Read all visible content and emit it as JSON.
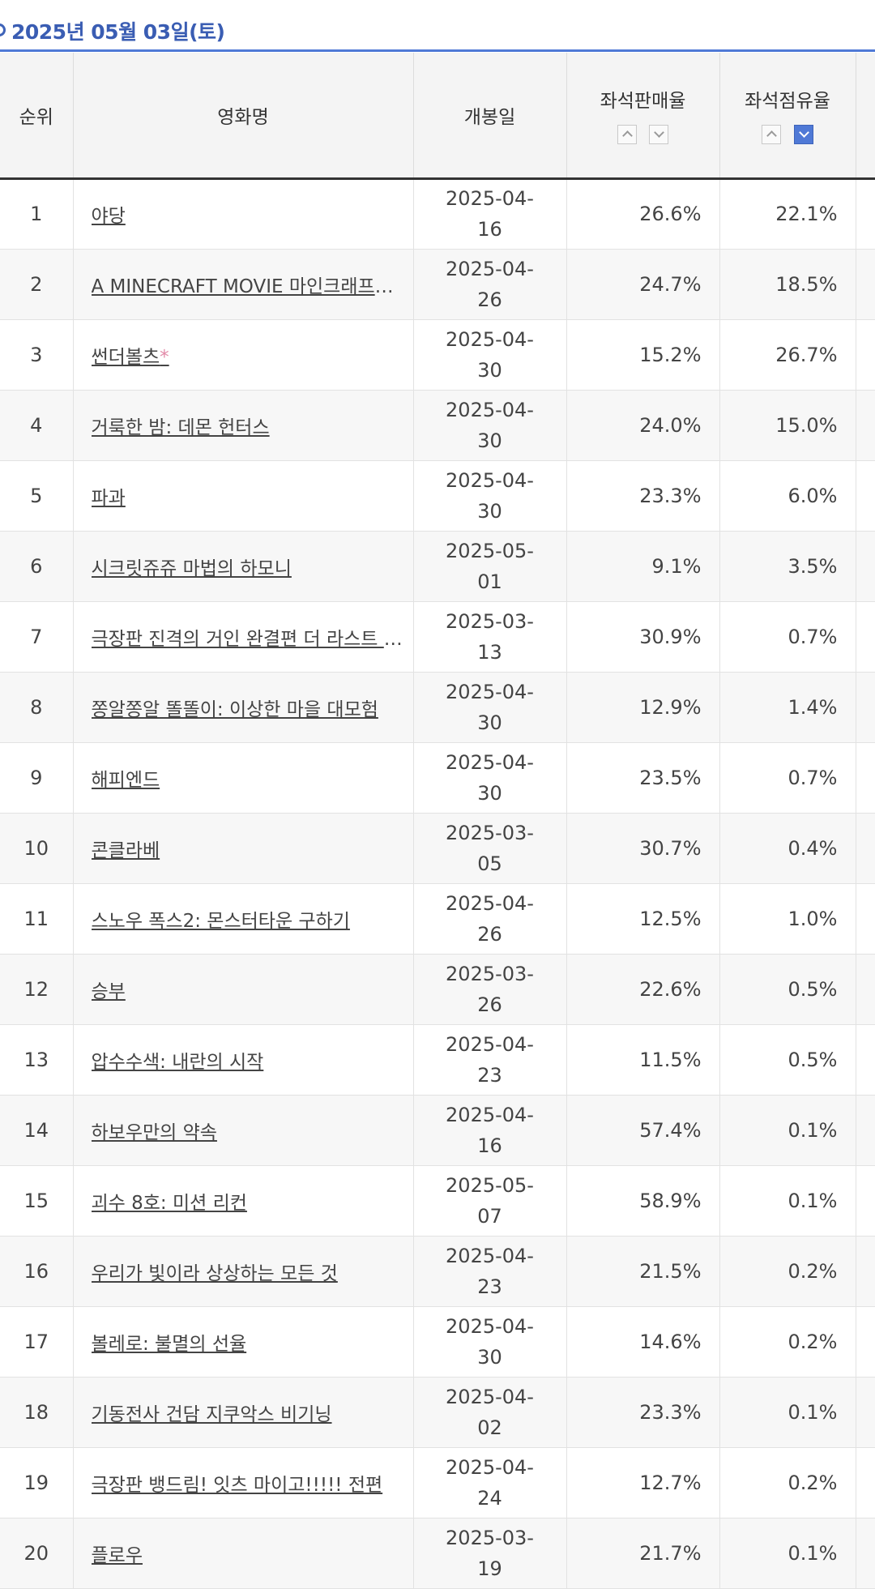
{
  "header": {
    "date": "2025년 05월 03일(토)"
  },
  "table": {
    "columns": {
      "rank": "순위",
      "title": "영화명",
      "open_date": "개봉일",
      "seat_sales": "좌석판매율",
      "seat_share": "좌석점유율"
    },
    "rows": [
      {
        "rank": "1",
        "title": "야당",
        "mark": "",
        "open_date": "2025-04-16",
        "seat_sales": "26.6%",
        "seat_share": "22.1%"
      },
      {
        "rank": "2",
        "title": "A MINECRAFT MOVIE 마인크래프트 무비",
        "mark": "",
        "open_date": "2025-04-26",
        "seat_sales": "24.7%",
        "seat_share": "18.5%"
      },
      {
        "rank": "3",
        "title": "썬더볼츠",
        "mark": "*",
        "open_date": "2025-04-30",
        "seat_sales": "15.2%",
        "seat_share": "26.7%"
      },
      {
        "rank": "4",
        "title": "거룩한 밤: 데몬 헌터스",
        "mark": "",
        "open_date": "2025-04-30",
        "seat_sales": "24.0%",
        "seat_share": "15.0%"
      },
      {
        "rank": "5",
        "title": "파과",
        "mark": "",
        "open_date": "2025-04-30",
        "seat_sales": "23.3%",
        "seat_share": "6.0%"
      },
      {
        "rank": "6",
        "title": "시크릿쥬쥬 마법의 하모니",
        "mark": "",
        "open_date": "2025-05-01",
        "seat_sales": "9.1%",
        "seat_share": "3.5%"
      },
      {
        "rank": "7",
        "title": "극장판 진격의 거인 완결편 더 라스트 어택",
        "mark": "",
        "open_date": "2025-03-13",
        "seat_sales": "30.9%",
        "seat_share": "0.7%"
      },
      {
        "rank": "8",
        "title": "쫑알쫑알 똘똘이: 이상한 마을 대모험",
        "mark": "",
        "open_date": "2025-04-30",
        "seat_sales": "12.9%",
        "seat_share": "1.4%"
      },
      {
        "rank": "9",
        "title": "해피엔드",
        "mark": "",
        "open_date": "2025-04-30",
        "seat_sales": "23.5%",
        "seat_share": "0.7%"
      },
      {
        "rank": "10",
        "title": "콘클라베",
        "mark": "",
        "open_date": "2025-03-05",
        "seat_sales": "30.7%",
        "seat_share": "0.4%"
      },
      {
        "rank": "11",
        "title": "스노우 폭스2: 몬스터타운 구하기",
        "mark": "",
        "open_date": "2025-04-26",
        "seat_sales": "12.5%",
        "seat_share": "1.0%"
      },
      {
        "rank": "12",
        "title": "승부",
        "mark": "",
        "open_date": "2025-03-26",
        "seat_sales": "22.6%",
        "seat_share": "0.5%"
      },
      {
        "rank": "13",
        "title": "압수수색: 내란의 시작",
        "mark": "",
        "open_date": "2025-04-23",
        "seat_sales": "11.5%",
        "seat_share": "0.5%"
      },
      {
        "rank": "14",
        "title": "하보우만의 약속",
        "mark": "",
        "open_date": "2025-04-16",
        "seat_sales": "57.4%",
        "seat_share": "0.1%"
      },
      {
        "rank": "15",
        "title": "괴수 8호: 미션 리컨",
        "mark": "",
        "open_date": "2025-05-07",
        "seat_sales": "58.9%",
        "seat_share": "0.1%"
      },
      {
        "rank": "16",
        "title": "우리가 빛이라 상상하는 모든 것",
        "mark": "",
        "open_date": "2025-04-23",
        "seat_sales": "21.5%",
        "seat_share": "0.2%"
      },
      {
        "rank": "17",
        "title": "볼레로: 불멸의 선율",
        "mark": "",
        "open_date": "2025-04-30",
        "seat_sales": "14.6%",
        "seat_share": "0.2%"
      },
      {
        "rank": "18",
        "title": "기동전사 건담 지쿠악스 비기닝",
        "mark": "",
        "open_date": "2025-04-02",
        "seat_sales": "23.3%",
        "seat_share": "0.1%"
      },
      {
        "rank": "19",
        "title": "극장판 뱅드림! 잇츠 마이고!!!!! 전편",
        "mark": "",
        "open_date": "2025-04-24",
        "seat_sales": "12.7%",
        "seat_share": "0.2%"
      },
      {
        "rank": "20",
        "title": "플로우",
        "mark": "",
        "open_date": "2025-03-19",
        "seat_sales": "21.7%",
        "seat_share": "0.1%"
      }
    ]
  },
  "sort": {
    "seat_sales": "none",
    "seat_share": "descending"
  },
  "colors": {
    "accent": "#4f79d6",
    "header_bg": "#f4f4f4",
    "star_mark": "#e28aa8"
  }
}
